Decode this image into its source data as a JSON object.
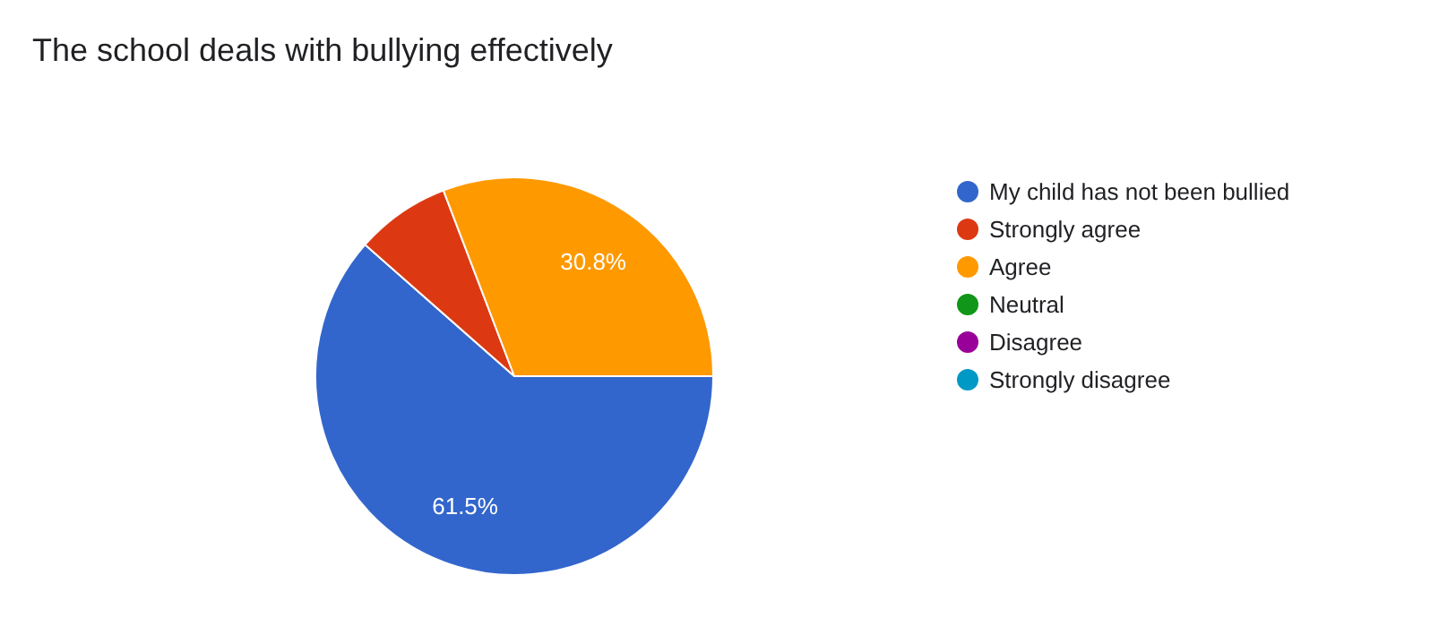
{
  "chart_data": {
    "type": "pie",
    "title": "The school deals with bullying effectively",
    "categories": [
      "My child has not been bullied",
      "Strongly agree",
      "Agree",
      "Neutral",
      "Disagree",
      "Strongly disagree"
    ],
    "values": [
      61.5,
      7.7,
      30.8,
      0,
      0,
      0
    ],
    "colors": [
      "#3366cc",
      "#dc3912",
      "#ff9900",
      "#109618",
      "#990099",
      "#0099c6"
    ],
    "value_labels": [
      "61.5%",
      null,
      "30.8%",
      null,
      null,
      null
    ],
    "legend": "right"
  }
}
